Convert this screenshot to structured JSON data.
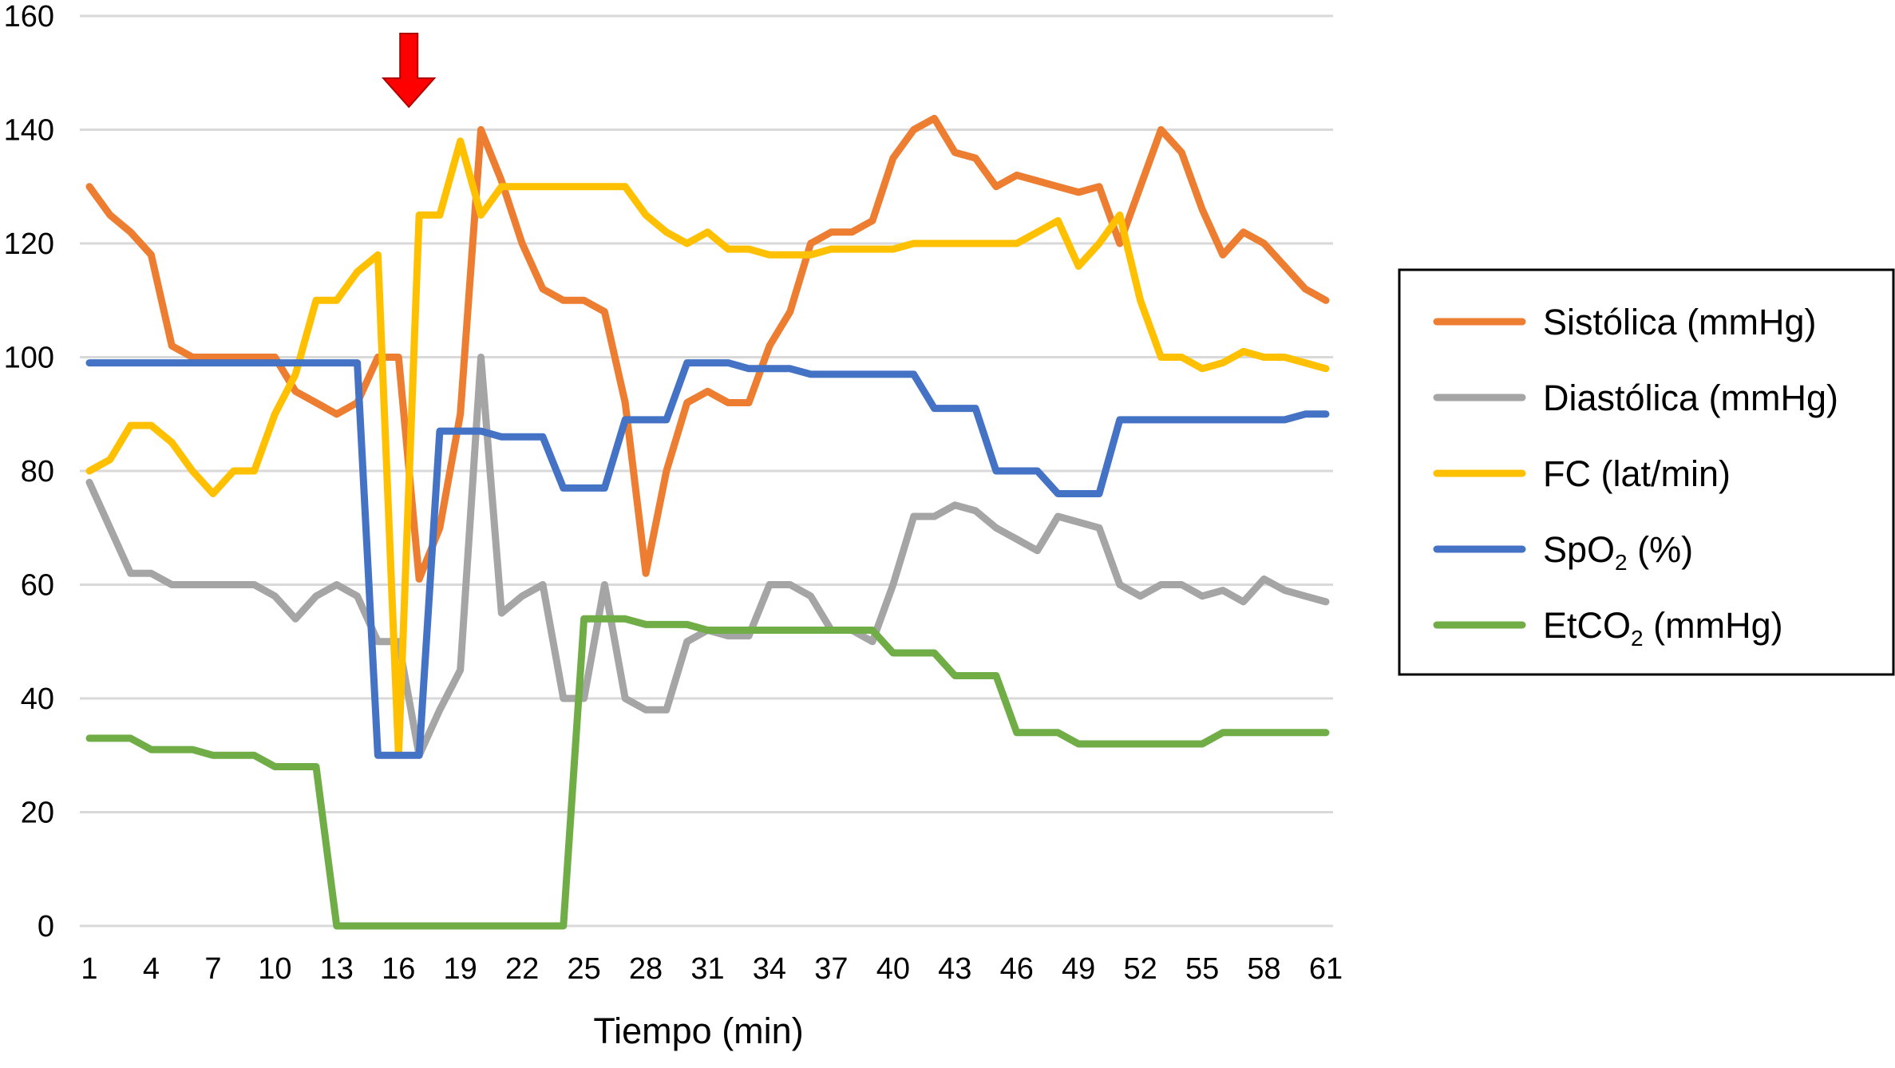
{
  "chart_data": {
    "type": "line",
    "title": "",
    "xlabel": "Tiempo (min)",
    "ylabel": "",
    "ylim": [
      0,
      160
    ],
    "yticks": [
      0,
      20,
      40,
      60,
      80,
      100,
      120,
      140,
      160
    ],
    "xlim": [
      1,
      61
    ],
    "xticks": [
      1,
      4,
      7,
      10,
      13,
      16,
      19,
      22,
      25,
      28,
      31,
      34,
      37,
      40,
      43,
      46,
      49,
      52,
      55,
      58,
      61
    ],
    "grid": "horizontal",
    "legend_position": "right",
    "marker": {
      "type": "arrow-down",
      "x": 16.5,
      "color": "#ff0000"
    },
    "x": [
      1,
      2,
      3,
      4,
      5,
      6,
      7,
      8,
      9,
      10,
      11,
      12,
      13,
      14,
      15,
      16,
      17,
      18,
      19,
      20,
      21,
      22,
      23,
      24,
      25,
      26,
      27,
      28,
      29,
      30,
      31,
      32,
      33,
      34,
      35,
      36,
      37,
      38,
      39,
      40,
      41,
      42,
      43,
      44,
      45,
      46,
      47,
      48,
      49,
      50,
      51,
      52,
      53,
      54,
      55,
      56,
      57,
      58,
      59,
      60,
      61
    ],
    "series": [
      {
        "name": "Sistólica (mmHg)",
        "legend_main": "Sistólica (mmHg)",
        "legend_sub": "",
        "legend_rest": "",
        "color": "#ed7d31",
        "values": [
          130,
          125,
          122,
          118,
          102,
          100,
          100,
          100,
          100,
          100,
          94,
          92,
          90,
          92,
          100,
          100,
          61,
          70,
          90,
          140,
          131,
          120,
          112,
          110,
          110,
          108,
          92,
          62,
          80,
          92,
          94,
          92,
          92,
          102,
          108,
          120,
          122,
          122,
          124,
          135,
          140,
          142,
          136,
          135,
          130,
          132,
          131,
          130,
          129,
          130,
          120,
          130,
          140,
          136,
          126,
          118,
          122,
          120,
          116,
          112,
          110
        ]
      },
      {
        "name": "Diastólica (mmHg)",
        "legend_main": "Diastólica (mmHg)",
        "legend_sub": "",
        "legend_rest": "",
        "color": "#a5a5a5",
        "values": [
          78,
          70,
          62,
          62,
          60,
          60,
          60,
          60,
          60,
          58,
          54,
          58,
          60,
          58,
          50,
          50,
          30,
          38,
          45,
          100,
          55,
          58,
          60,
          40,
          40,
          60,
          40,
          38,
          38,
          50,
          52,
          51,
          51,
          60,
          60,
          58,
          52,
          52,
          50,
          60,
          72,
          72,
          74,
          73,
          70,
          68,
          66,
          72,
          71,
          70,
          60,
          58,
          60,
          60,
          58,
          59,
          57,
          61,
          59,
          58,
          57
        ]
      },
      {
        "name": "FC (lat/min)",
        "legend_main": "FC (lat/min)",
        "legend_sub": "",
        "legend_rest": "",
        "color": "#ffc000",
        "values": [
          80,
          82,
          88,
          88,
          85,
          80,
          76,
          80,
          80,
          90,
          97,
          110,
          110,
          115,
          118,
          30,
          125,
          125,
          138,
          125,
          130,
          130,
          130,
          130,
          130,
          130,
          130,
          125,
          122,
          120,
          122,
          119,
          119,
          118,
          118,
          118,
          119,
          119,
          119,
          119,
          120,
          120,
          120,
          120,
          120,
          120,
          122,
          124,
          116,
          120,
          125,
          110,
          100,
          100,
          98,
          99,
          101,
          100,
          100,
          99,
          98
        ]
      },
      {
        "name": "SpO2 (%)",
        "legend_main": "SpO",
        "legend_sub": "2",
        "legend_rest": " (%)",
        "color": "#4472c4",
        "values": [
          99,
          99,
          99,
          99,
          99,
          99,
          99,
          99,
          99,
          99,
          99,
          99,
          99,
          99,
          30,
          30,
          30,
          87,
          87,
          87,
          86,
          86,
          86,
          77,
          77,
          77,
          89,
          89,
          89,
          99,
          99,
          99,
          98,
          98,
          98,
          97,
          97,
          97,
          97,
          97,
          97,
          91,
          91,
          91,
          80,
          80,
          80,
          76,
          76,
          76,
          89,
          89,
          89,
          89,
          89,
          89,
          89,
          89,
          89,
          90,
          90
        ]
      },
      {
        "name": "EtCO2 (mmHg)",
        "legend_main": "EtCO",
        "legend_sub": "2",
        "legend_rest": " (mmHg)",
        "color": "#70ad47",
        "values": [
          33,
          33,
          33,
          31,
          31,
          31,
          30,
          30,
          30,
          28,
          28,
          28,
          0,
          0,
          0,
          0,
          0,
          0,
          0,
          0,
          0,
          0,
          0,
          0,
          54,
          54,
          54,
          53,
          53,
          53,
          52,
          52,
          52,
          52,
          52,
          52,
          52,
          52,
          52,
          48,
          48,
          48,
          44,
          44,
          44,
          34,
          34,
          34,
          32,
          32,
          32,
          32,
          32,
          32,
          32,
          34,
          34,
          34,
          34,
          34,
          34
        ]
      }
    ]
  }
}
